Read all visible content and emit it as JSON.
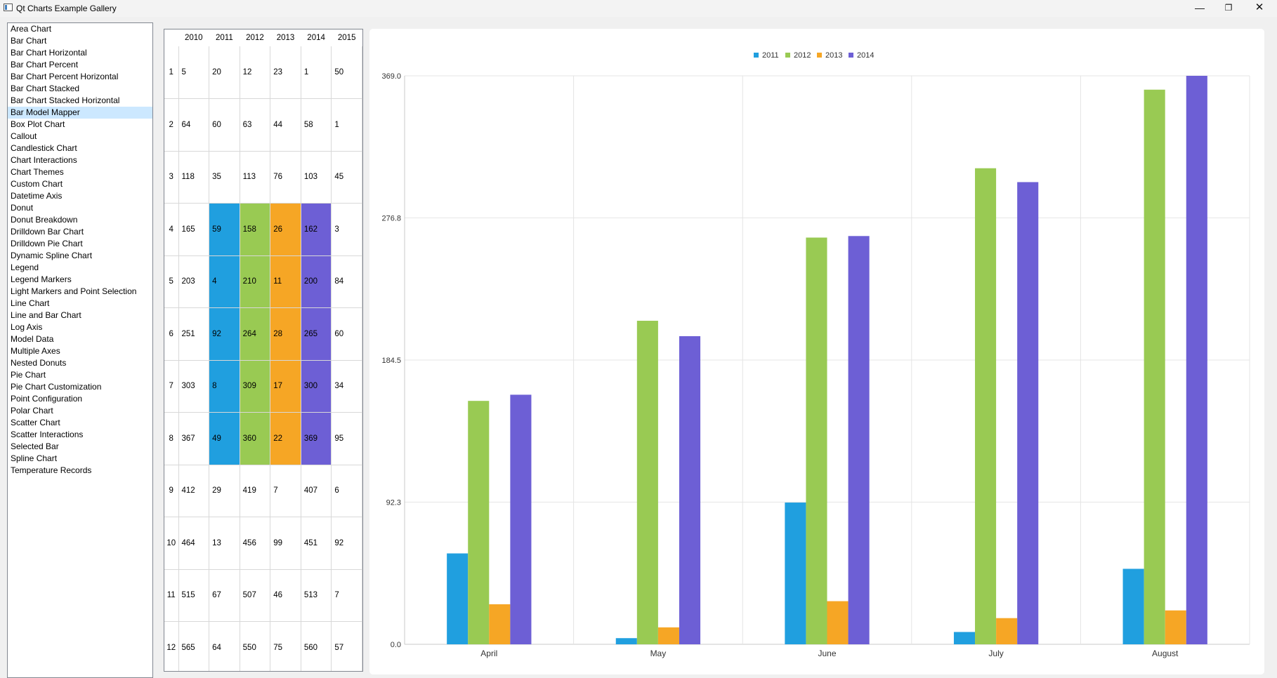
{
  "window": {
    "title": "Qt Charts Example Gallery"
  },
  "sidebar": {
    "items": [
      "Area Chart",
      "Bar Chart",
      "Bar Chart Horizontal",
      "Bar Chart Percent",
      "Bar Chart Percent Horizontal",
      "Bar Chart Stacked",
      "Bar Chart Stacked Horizontal",
      "Bar Model Mapper",
      "Box Plot Chart",
      "Callout",
      "Candlestick Chart",
      "Chart Interactions",
      "Chart Themes",
      "Custom Chart",
      "Datetime Axis",
      "Donut",
      "Donut Breakdown",
      "Drilldown Bar Chart",
      "Drilldown Pie Chart",
      "Dynamic Spline Chart",
      "Legend",
      "Legend Markers",
      "Light Markers and Point Selection",
      "Line Chart",
      "Line and Bar Chart",
      "Log Axis",
      "Model Data",
      "Multiple Axes",
      "Nested Donuts",
      "Pie Chart",
      "Pie Chart Customization",
      "Point Configuration",
      "Polar Chart",
      "Scatter Chart",
      "Scatter Interactions",
      "Selected Bar",
      "Spline Chart",
      "Temperature Records"
    ],
    "selected": "Bar Model Mapper"
  },
  "table": {
    "columns": [
      "2010",
      "2011",
      "2012",
      "2013",
      "2014",
      "2015"
    ],
    "rows": [
      {
        "label": "1",
        "cells": [
          "5",
          "20",
          "12",
          "23",
          "1",
          "50"
        ]
      },
      {
        "label": "2",
        "cells": [
          "64",
          "60",
          "63",
          "44",
          "58",
          "1"
        ]
      },
      {
        "label": "3",
        "cells": [
          "118",
          "35",
          "113",
          "76",
          "103",
          "45"
        ]
      },
      {
        "label": "4",
        "cells": [
          "165",
          "59",
          "158",
          "26",
          "162",
          "3"
        ]
      },
      {
        "label": "5",
        "cells": [
          "203",
          "4",
          "210",
          "11",
          "200",
          "84"
        ]
      },
      {
        "label": "6",
        "cells": [
          "251",
          "92",
          "264",
          "28",
          "265",
          "60"
        ]
      },
      {
        "label": "7",
        "cells": [
          "303",
          "8",
          "309",
          "17",
          "300",
          "34"
        ]
      },
      {
        "label": "8",
        "cells": [
          "367",
          "49",
          "360",
          "22",
          "369",
          "95"
        ]
      },
      {
        "label": "9",
        "cells": [
          "412",
          "29",
          "419",
          "7",
          "407",
          "6"
        ]
      },
      {
        "label": "10",
        "cells": [
          "464",
          "13",
          "456",
          "99",
          "451",
          "92"
        ]
      },
      {
        "label": "11",
        "cells": [
          "515",
          "67",
          "507",
          "46",
          "513",
          "7"
        ]
      },
      {
        "label": "12",
        "cells": [
          "565",
          "64",
          "550",
          "75",
          "560",
          "57"
        ]
      }
    ],
    "highlight": {
      "first_row": 3,
      "last_row": 7,
      "columns": [
        "2011",
        "2012",
        "2013",
        "2014"
      ]
    }
  },
  "colors": {
    "2011": "#209fdf",
    "2012": "#99ca53",
    "2013": "#f6a625",
    "2014": "#6d5fd5"
  },
  "chart_data": {
    "type": "bar",
    "categories": [
      "April",
      "May",
      "June",
      "July",
      "August"
    ],
    "series": [
      {
        "name": "2011",
        "color": "#209fdf",
        "values": [
          59,
          4,
          92,
          8,
          49
        ]
      },
      {
        "name": "2012",
        "color": "#99ca53",
        "values": [
          158,
          210,
          264,
          309,
          360
        ]
      },
      {
        "name": "2013",
        "color": "#f6a625",
        "values": [
          26,
          11,
          28,
          17,
          22
        ]
      },
      {
        "name": "2014",
        "color": "#6d5fd5",
        "values": [
          162,
          200,
          265,
          300,
          369
        ]
      }
    ],
    "ylim": [
      0,
      369
    ],
    "yticks": [
      "0.0",
      "92.3",
      "184.5",
      "276.8",
      "369.0"
    ],
    "legend": "top-center",
    "grid": true
  }
}
